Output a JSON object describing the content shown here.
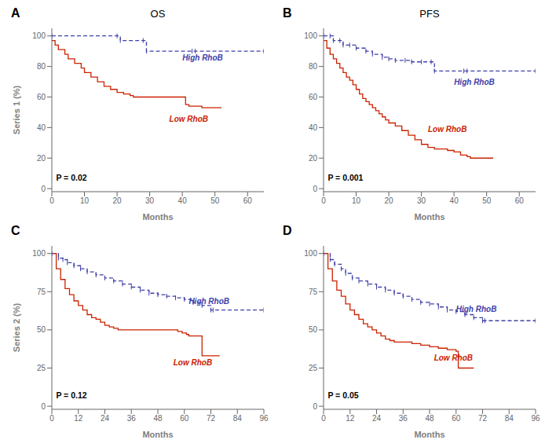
{
  "chart_data": [
    {
      "type": "step",
      "title": "OS",
      "xlabel": "Months",
      "ylabel": "Series 1 (%)",
      "xlim": [
        0,
        65
      ],
      "ylim": [
        -2,
        105
      ],
      "xticks": [
        0,
        10,
        20,
        30,
        40,
        50,
        60
      ],
      "yticks": [
        0,
        20,
        40,
        60,
        80,
        100
      ],
      "series": [
        {
          "color": "#4040aa",
          "line_style": "dashed",
          "marker": "|",
          "x": [
            0,
            20,
            21,
            28,
            29,
            43,
            44,
            65
          ],
          "values": [
            100,
            100,
            97,
            97,
            90,
            90,
            90,
            90
          ]
        },
        {
          "color": "#cc2200",
          "line_style": "solid",
          "x": [
            0,
            1,
            2,
            4,
            5,
            7,
            9,
            10,
            12,
            14,
            16,
            18,
            20,
            22,
            24,
            25,
            27,
            29,
            30,
            32,
            35,
            41,
            42,
            45,
            46,
            51,
            52
          ],
          "values": [
            97,
            94,
            91,
            88,
            85,
            82,
            79,
            76,
            73,
            70,
            67,
            65,
            63,
            62,
            61,
            60,
            60,
            60,
            60,
            60,
            60,
            55,
            54,
            54,
            53,
            53,
            53
          ]
        }
      ],
      "annotations": [
        {
          "text": "A"
        },
        {
          "text": "High RhoB",
          "x": 40,
          "y": 84,
          "color": "#4040aa"
        },
        {
          "text": "Low RhoB",
          "x": 36,
          "y": 44,
          "color": "#cc2200"
        },
        {
          "text": "P = 0.02",
          "x": 1.3,
          "y": 5
        }
      ]
    },
    {
      "type": "step",
      "title": "PFS",
      "xlabel": "Months",
      "xlim": [
        0,
        65
      ],
      "ylim": [
        -2,
        105
      ],
      "xticks": [
        0,
        10,
        20,
        30,
        40,
        50,
        60
      ],
      "yticks": [
        0,
        20,
        40,
        60,
        80,
        100
      ],
      "series": [
        {
          "color": "#4040aa",
          "line_style": "dashed",
          "marker": "|",
          "x": [
            0,
            2,
            3,
            5,
            6,
            8,
            10,
            13,
            15,
            18,
            20,
            22,
            25,
            27,
            30,
            33,
            34,
            43,
            44,
            65
          ],
          "values": [
            100,
            100,
            97,
            97,
            94,
            94,
            92,
            90,
            88,
            86,
            85,
            84,
            84,
            83,
            83,
            83,
            77,
            77,
            77,
            77
          ]
        },
        {
          "color": "#cc2200",
          "line_style": "solid",
          "x": [
            0,
            1,
            2,
            3,
            4,
            5,
            6,
            7,
            8,
            9,
            10,
            11,
            12,
            13,
            14,
            15,
            16,
            17,
            18,
            19,
            20,
            22,
            24,
            26,
            28,
            30,
            32,
            34,
            36,
            38,
            40,
            42,
            43,
            44,
            45,
            46,
            47,
            48,
            51,
            52
          ],
          "values": [
            97,
            92,
            88,
            85,
            82,
            79,
            76,
            73,
            71,
            68,
            65,
            62,
            59,
            57,
            55,
            53,
            51,
            49,
            47,
            45,
            43,
            41,
            38,
            35,
            32,
            29,
            27,
            26,
            26,
            25,
            24,
            22,
            22,
            21,
            20,
            20,
            20,
            20,
            20,
            20
          ]
        }
      ],
      "annotations": [
        {
          "text": "B"
        },
        {
          "text": "High RhoB",
          "x": 40,
          "y": 68,
          "color": "#4040aa"
        },
        {
          "text": "Low RhoB",
          "x": 32,
          "y": 37,
          "color": "#cc2200"
        },
        {
          "text": "P = 0.001",
          "x": 1.3,
          "y": 5
        }
      ]
    },
    {
      "type": "step",
      "xlabel": "Months",
      "ylabel": "Series 2 (%)",
      "xlim": [
        0,
        96
      ],
      "ylim": [
        -2,
        105
      ],
      "xticks": [
        0,
        12,
        24,
        36,
        48,
        60,
        72,
        84,
        96
      ],
      "yticks": [
        0,
        25,
        50,
        75,
        100
      ],
      "series": [
        {
          "color": "#4040aa",
          "line_style": "dashed",
          "marker": "|",
          "x": [
            0,
            3,
            5,
            7,
            10,
            13,
            16,
            20,
            24,
            28,
            32,
            36,
            40,
            44,
            48,
            52,
            56,
            60,
            64,
            68,
            72,
            73,
            96
          ],
          "values": [
            100,
            97,
            96,
            94,
            92,
            90,
            88,
            86,
            84,
            82,
            80,
            78,
            76,
            74,
            73,
            72,
            71,
            70,
            68,
            66,
            63,
            63,
            63
          ]
        },
        {
          "color": "#cc2200",
          "line_style": "solid",
          "x": [
            0,
            2,
            4,
            6,
            8,
            10,
            12,
            14,
            16,
            18,
            20,
            22,
            24,
            26,
            28,
            30,
            36,
            56,
            57,
            59,
            61,
            62,
            68,
            70,
            72,
            76
          ],
          "values": [
            100,
            90,
            83,
            77,
            73,
            69,
            66,
            63,
            60,
            58,
            57,
            55,
            53,
            52,
            51,
            50,
            50,
            50,
            49,
            48,
            47,
            46,
            33,
            33,
            33,
            33
          ]
        }
      ],
      "annotations": [
        {
          "text": "C"
        },
        {
          "text": "High RhoB",
          "x": 62,
          "y": 67,
          "color": "#4040aa"
        },
        {
          "text": "Low RhoB",
          "x": 55,
          "y": 27,
          "color": "#cc2200"
        },
        {
          "text": "P = 0.12",
          "x": 1.92,
          "y": 5
        }
      ]
    },
    {
      "type": "step",
      "xlabel": "Months",
      "xlim": [
        0,
        96
      ],
      "ylim": [
        -2,
        105
      ],
      "xticks": [
        0,
        12,
        24,
        36,
        48,
        60,
        72,
        84,
        96
      ],
      "yticks": [
        0,
        25,
        50,
        75,
        100
      ],
      "series": [
        {
          "color": "#4040aa",
          "line_style": "dashed",
          "marker": "|",
          "x": [
            0,
            3,
            5,
            8,
            10,
            13,
            16,
            20,
            24,
            28,
            32,
            36,
            40,
            44,
            48,
            52,
            56,
            60,
            64,
            68,
            72,
            73,
            96
          ],
          "values": [
            100,
            96,
            93,
            90,
            87,
            84,
            82,
            80,
            78,
            76,
            74,
            72,
            70,
            68,
            67,
            65,
            63,
            62,
            60,
            58,
            56,
            56,
            56
          ]
        },
        {
          "color": "#cc2200",
          "line_style": "solid",
          "x": [
            0,
            2,
            4,
            6,
            8,
            10,
            12,
            14,
            16,
            18,
            20,
            22,
            24,
            26,
            28,
            30,
            32,
            36,
            40,
            44,
            48,
            52,
            56,
            58,
            60,
            61,
            68
          ],
          "values": [
            100,
            90,
            82,
            76,
            72,
            67,
            63,
            60,
            57,
            54,
            52,
            50,
            48,
            46,
            44,
            43,
            42,
            42,
            41,
            40,
            39,
            38,
            37,
            37,
            36,
            25,
            25
          ]
        }
      ],
      "annotations": [
        {
          "text": "D"
        },
        {
          "text": "High RhoB",
          "x": 60,
          "y": 62,
          "color": "#4040aa"
        },
        {
          "text": "Low RhoB",
          "x": 50,
          "y": 30,
          "color": "#cc2200"
        },
        {
          "text": "P = 0.05",
          "x": 1.92,
          "y": 5
        }
      ]
    }
  ]
}
